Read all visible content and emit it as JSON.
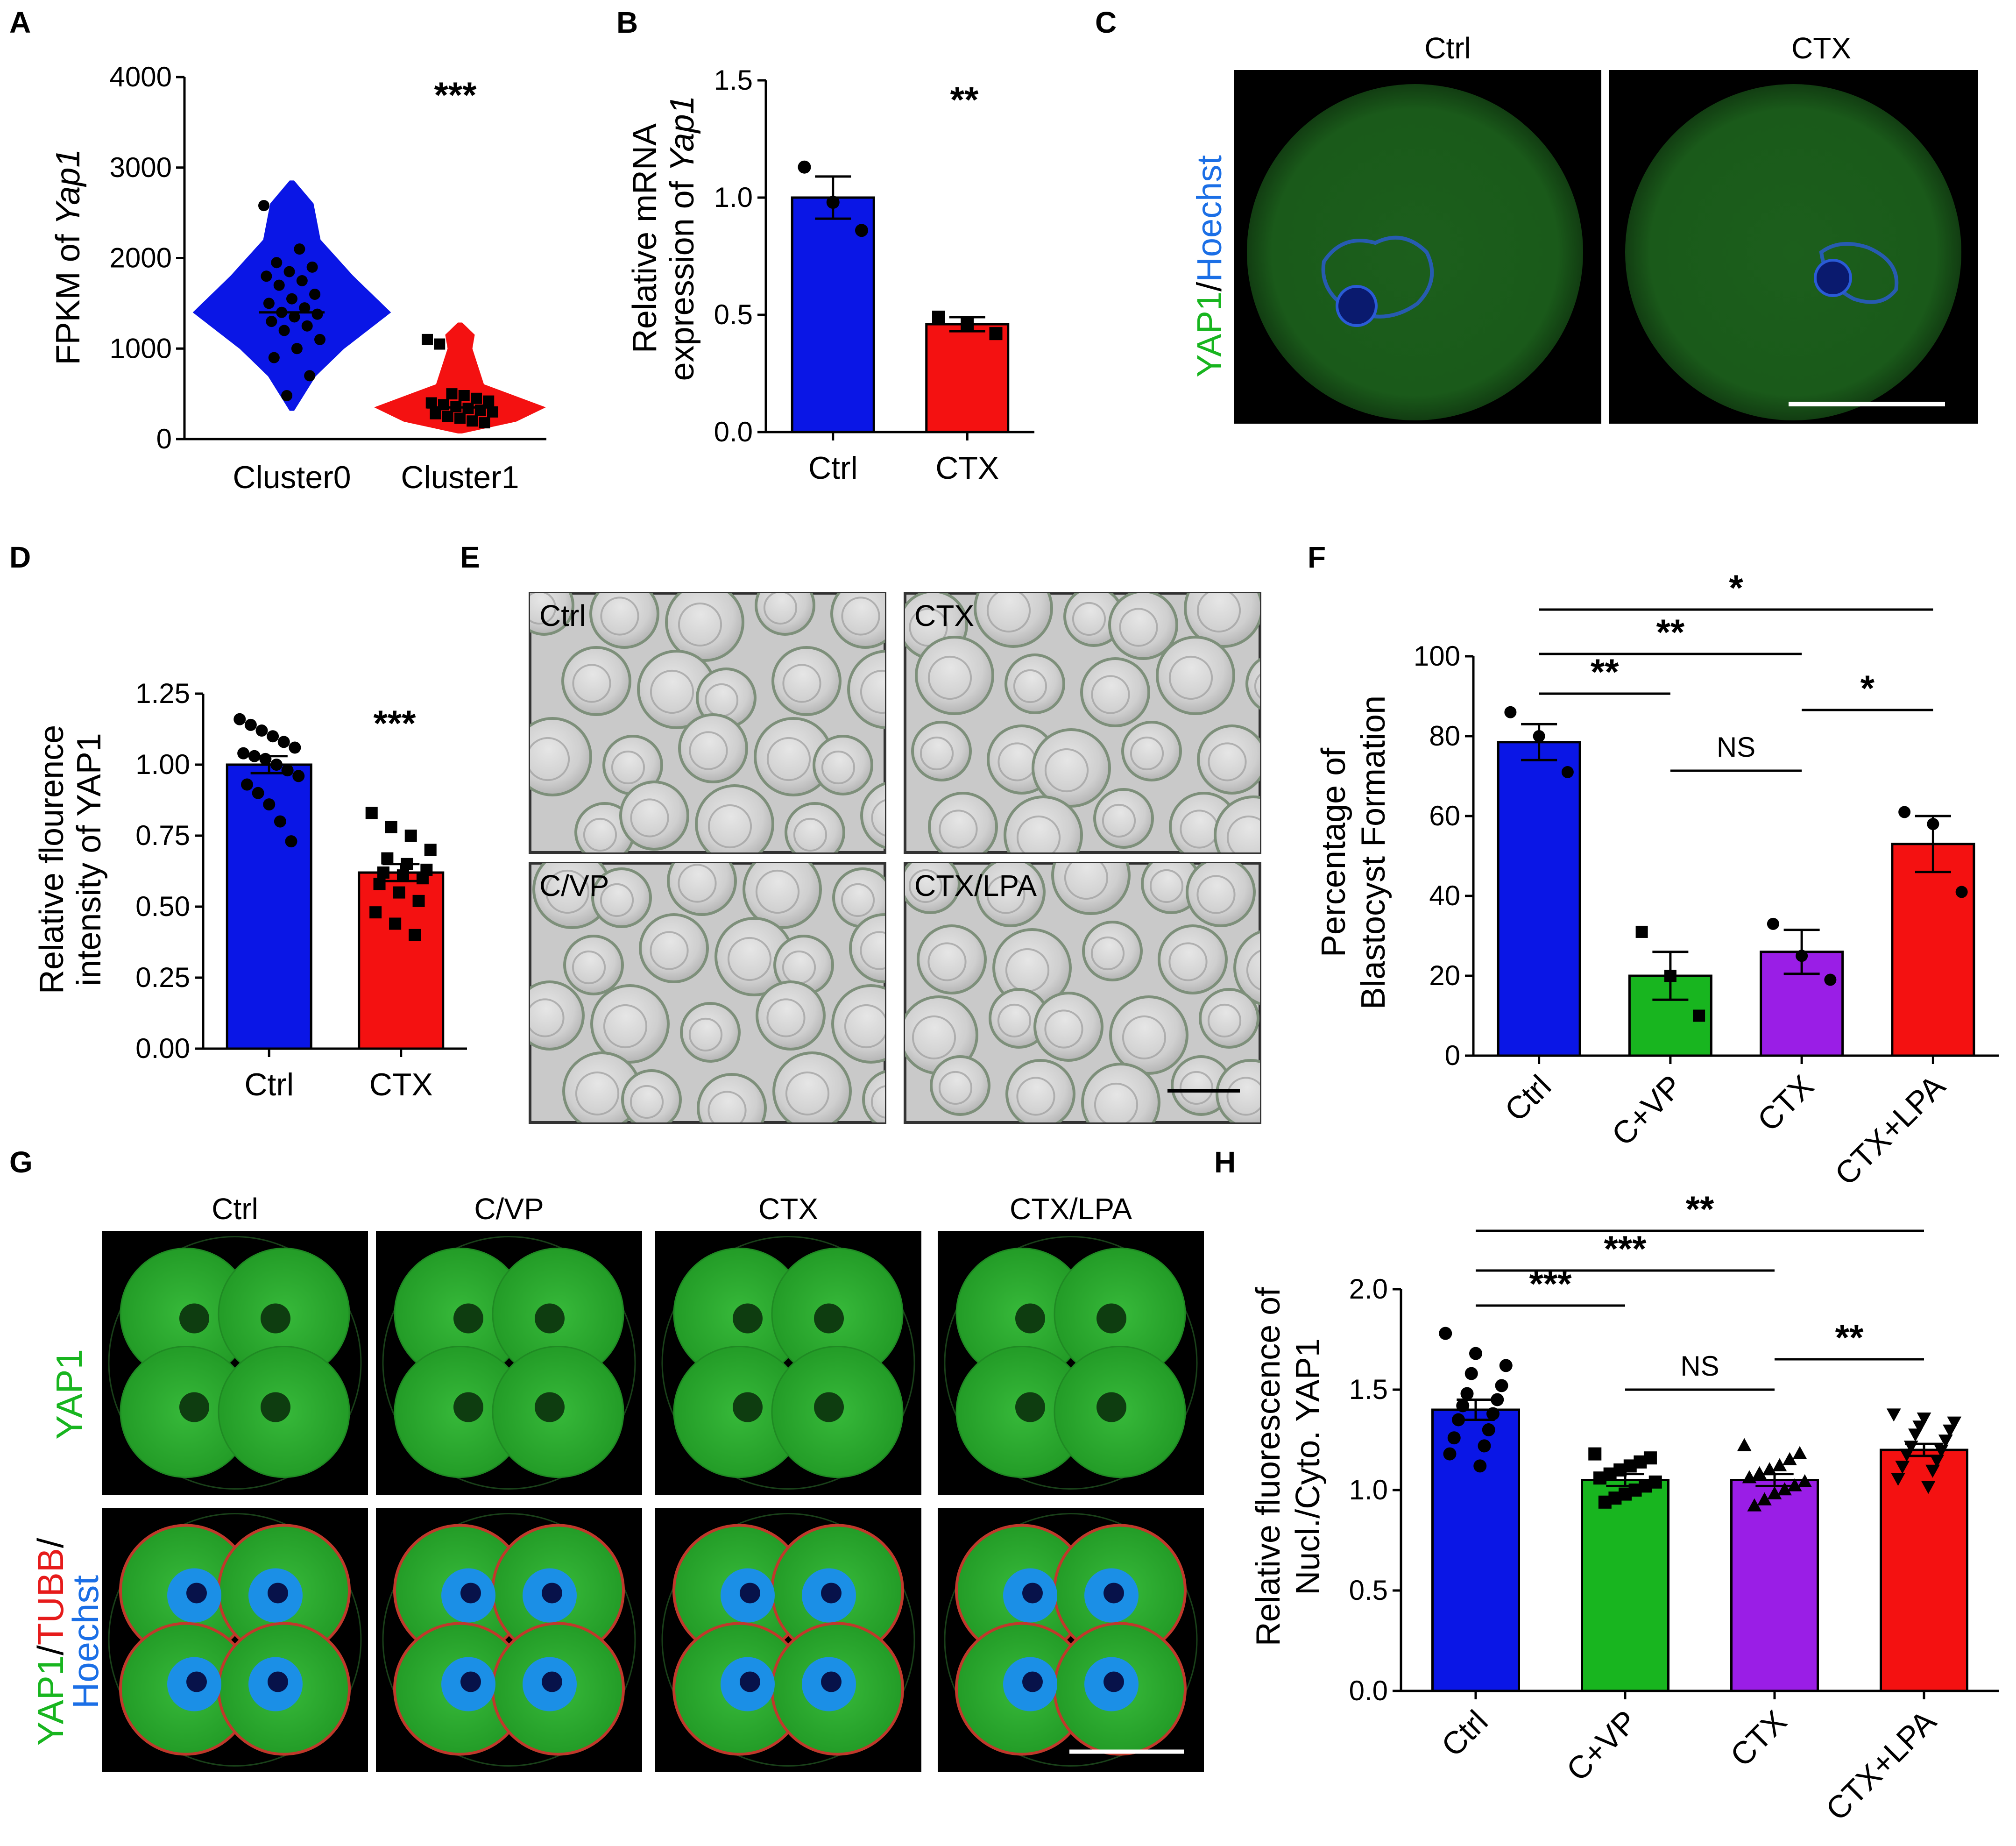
{
  "panels": {
    "A": "A",
    "B": "B",
    "C": "C",
    "D": "D",
    "E": "E",
    "F": "F",
    "G": "G",
    "H": "H"
  },
  "colors": {
    "blue": "#0a16e6",
    "red": "#f41111",
    "green": "#18b51f",
    "purple": "#9a1ee6",
    "cyto": "#1ba11f",
    "nucleus": "#1b8fe6"
  },
  "chart_data": [
    {
      "panel": "A",
      "type": "violin",
      "ylabel": "FPKM of Yap1",
      "ylabel_prefix": "FPKM of ",
      "ylabel_italic": "Yap1",
      "ylim": [
        0,
        4000
      ],
      "yticks": [
        0,
        1000,
        2000,
        3000,
        4000
      ],
      "categories": [
        "Cluster0",
        "Cluster1"
      ],
      "medians": [
        1400,
        350
      ],
      "significance": "***",
      "series": [
        {
          "values": [
            2580,
            2100,
            1950,
            1900,
            1850,
            1800,
            1750,
            1700,
            1600,
            1550,
            1500,
            1450,
            1400,
            1380,
            1350,
            1300,
            1250,
            1200,
            1100,
            1000,
            900,
            700,
            480
          ]
        },
        {
          "values": [
            1100,
            1050,
            500,
            480,
            450,
            420,
            400,
            380,
            360,
            340,
            320,
            300,
            280,
            250,
            230,
            200,
            180
          ]
        }
      ]
    },
    {
      "panel": "B",
      "type": "bar",
      "ylabel_line1": "Relative mRNA",
      "ylabel_line2_prefix": "expression of ",
      "ylabel_line2_italic": "Yap1",
      "ylim": [
        0,
        1.5
      ],
      "yticks": [
        "0.0",
        "0.5",
        "1.0",
        "1.5"
      ],
      "categories": [
        "Ctrl",
        "CTX"
      ],
      "values": [
        1.0,
        0.46
      ],
      "sem": [
        0.09,
        0.03
      ],
      "points": [
        [
          1.13,
          0.98,
          0.86
        ],
        [
          0.49,
          0.46,
          0.42
        ]
      ],
      "significance": "**"
    },
    {
      "panel": "D",
      "type": "bar",
      "ylabel_line1": "Relative flourence",
      "ylabel_line2": "intensity of YAP1",
      "ylim": [
        0,
        1.25
      ],
      "yticks": [
        "0.00",
        "0.25",
        "0.50",
        "0.75",
        "1.00",
        "1.25"
      ],
      "categories": [
        "Ctrl",
        "CTX"
      ],
      "values": [
        1.0,
        0.62
      ],
      "sem": [
        0.03,
        0.03
      ],
      "points": [
        [
          1.16,
          1.14,
          1.12,
          1.1,
          1.08,
          1.06,
          1.04,
          1.03,
          1.02,
          1.0,
          0.98,
          0.96,
          0.93,
          0.9,
          0.86,
          0.8,
          0.73
        ],
        [
          0.83,
          0.78,
          0.75,
          0.7,
          0.67,
          0.65,
          0.63,
          0.62,
          0.61,
          0.6,
          0.58,
          0.55,
          0.52,
          0.48,
          0.44,
          0.4
        ]
      ],
      "significance": "***"
    },
    {
      "panel": "F",
      "type": "bar",
      "ylabel_line1": "Percentage of",
      "ylabel_line2": "Blastocyst Formation",
      "ylim": [
        0,
        100
      ],
      "yticks": [
        0,
        20,
        40,
        60,
        80,
        100
      ],
      "categories": [
        "Ctrl",
        "C+VP",
        "CTX",
        "CTX+LPA"
      ],
      "values": [
        78.5,
        20,
        26,
        53
      ],
      "sem": [
        4.5,
        6,
        5.5,
        7
      ],
      "points": [
        [
          86,
          80,
          71
        ],
        [
          31,
          20,
          10
        ],
        [
          33,
          25,
          19
        ],
        [
          61,
          58,
          41
        ]
      ],
      "comparisons": [
        {
          "from": 0,
          "to": 1,
          "label": "**"
        },
        {
          "from": 0,
          "to": 2,
          "label": "**"
        },
        {
          "from": 0,
          "to": 3,
          "label": "*"
        },
        {
          "from": 1,
          "to": 2,
          "label": "NS"
        },
        {
          "from": 2,
          "to": 3,
          "label": "*"
        }
      ]
    },
    {
      "panel": "H",
      "type": "bar",
      "ylabel_line1": "Relative fluorescence of",
      "ylabel_line2": "Nucl./Cyto. YAP1",
      "ylim": [
        0,
        2.0
      ],
      "yticks": [
        "0.0",
        "0.5",
        "1.0",
        "1.5",
        "2.0"
      ],
      "categories": [
        "Ctrl",
        "C+VP",
        "CTX",
        "CTX+LPA"
      ],
      "values": [
        1.4,
        1.05,
        1.05,
        1.2
      ],
      "sem": [
        0.05,
        0.03,
        0.03,
        0.03
      ],
      "points": [
        [
          1.78,
          1.68,
          1.62,
          1.58,
          1.52,
          1.48,
          1.45,
          1.42,
          1.38,
          1.35,
          1.3,
          1.26,
          1.22,
          1.18,
          1.12
        ],
        [
          1.18,
          1.16,
          1.14,
          1.12,
          1.1,
          1.08,
          1.06,
          1.04,
          1.02,
          1.0,
          0.98,
          0.96,
          0.94
        ],
        [
          1.22,
          1.18,
          1.15,
          1.12,
          1.1,
          1.08,
          1.06,
          1.04,
          1.02,
          1.0,
          0.98,
          0.95,
          0.92
        ],
        [
          1.38,
          1.36,
          1.34,
          1.32,
          1.3,
          1.28,
          1.25,
          1.22,
          1.2,
          1.18,
          1.15,
          1.12,
          1.1,
          1.06,
          1.02
        ]
      ],
      "comparisons": [
        {
          "from": 0,
          "to": 1,
          "label": "***"
        },
        {
          "from": 0,
          "to": 2,
          "label": "***"
        },
        {
          "from": 0,
          "to": 3,
          "label": "**"
        },
        {
          "from": 1,
          "to": 2,
          "label": "NS"
        },
        {
          "from": 2,
          "to": 3,
          "label": "**"
        }
      ]
    }
  ],
  "images": {
    "C": {
      "columns": [
        "Ctrl",
        "CTX"
      ],
      "side_label_green": "YAP1",
      "side_label_sep": "/",
      "side_label_blue": "Hoechst"
    },
    "E": {
      "tiles": [
        "Ctrl",
        "CTX",
        "C/VP",
        "CTX/LPA"
      ]
    },
    "G": {
      "columns": [
        "Ctrl",
        "C/VP",
        "CTX",
        "CTX/LPA"
      ],
      "row1_label": "YAP1",
      "row2_label_green": "YAP1",
      "row2_label_sep1": "/",
      "row2_label_red": "TUBB",
      "row2_label_sep2": "/",
      "row2_label_blue": "Hoechst"
    }
  }
}
